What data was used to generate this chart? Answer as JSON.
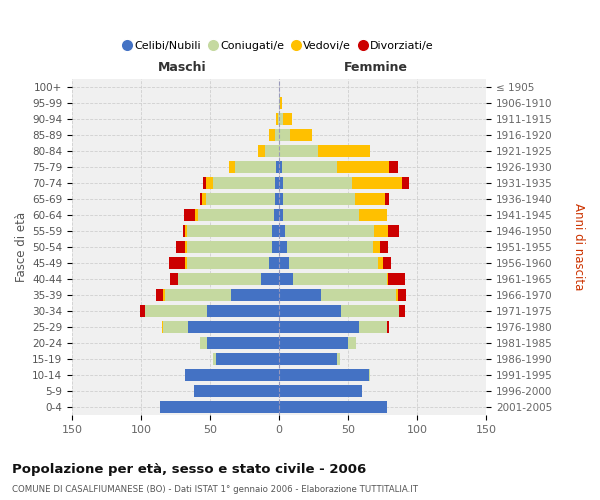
{
  "age_groups": [
    "0-4",
    "5-9",
    "10-14",
    "15-19",
    "20-24",
    "25-29",
    "30-34",
    "35-39",
    "40-44",
    "45-49",
    "50-54",
    "55-59",
    "60-64",
    "65-69",
    "70-74",
    "75-79",
    "80-84",
    "85-89",
    "90-94",
    "95-99",
    "100+"
  ],
  "birth_years": [
    "2001-2005",
    "1996-2000",
    "1991-1995",
    "1986-1990",
    "1981-1985",
    "1976-1980",
    "1971-1975",
    "1966-1970",
    "1961-1965",
    "1956-1960",
    "1951-1955",
    "1946-1950",
    "1941-1945",
    "1936-1940",
    "1931-1935",
    "1926-1930",
    "1921-1925",
    "1916-1920",
    "1911-1915",
    "1906-1910",
    "≤ 1905"
  ],
  "male_celibi": [
    86,
    62,
    68,
    46,
    52,
    66,
    52,
    35,
    13,
    7,
    5,
    5,
    4,
    3,
    3,
    2,
    0,
    0,
    0,
    0,
    0
  ],
  "male_coniugati": [
    0,
    0,
    0,
    2,
    5,
    18,
    45,
    48,
    60,
    60,
    62,
    62,
    55,
    50,
    45,
    30,
    10,
    3,
    1,
    0,
    0
  ],
  "male_vedovi": [
    0,
    0,
    0,
    0,
    0,
    1,
    0,
    1,
    0,
    1,
    1,
    1,
    2,
    3,
    5,
    4,
    5,
    4,
    1,
    0,
    0
  ],
  "male_divorziati": [
    0,
    0,
    0,
    0,
    0,
    0,
    4,
    5,
    6,
    12,
    7,
    2,
    8,
    1,
    2,
    0,
    0,
    0,
    0,
    0,
    0
  ],
  "female_nubili": [
    78,
    60,
    65,
    42,
    50,
    58,
    45,
    30,
    10,
    7,
    6,
    4,
    3,
    3,
    3,
    2,
    0,
    0,
    0,
    0,
    0
  ],
  "female_coniugate": [
    0,
    0,
    1,
    2,
    6,
    20,
    42,
    55,
    68,
    65,
    62,
    65,
    55,
    52,
    50,
    40,
    28,
    8,
    3,
    1,
    0
  ],
  "female_vedove": [
    0,
    0,
    0,
    0,
    0,
    0,
    0,
    1,
    1,
    3,
    5,
    10,
    20,
    22,
    36,
    38,
    38,
    16,
    6,
    1,
    0
  ],
  "female_divorziate": [
    0,
    0,
    0,
    0,
    0,
    2,
    4,
    6,
    12,
    6,
    6,
    8,
    0,
    3,
    5,
    6,
    0,
    0,
    0,
    0,
    0
  ],
  "color_celibi": "#4472c4",
  "color_coniugati": "#c5d9a0",
  "color_vedovi": "#ffc000",
  "color_divorziati": "#cc0000",
  "xlim": 150,
  "bg_color": "#f0f0f0",
  "grid_color": "#cccccc",
  "title": "Popolazione per età, sesso e stato civile - 2006",
  "subtitle": "COMUNE DI CASALFIUMANESE (BO) - Dati ISTAT 1° gennaio 2006 - Elaborazione TUTTITALIA.IT",
  "legend_labels": [
    "Celibi/Nubili",
    "Coniugati/e",
    "Vedovi/e",
    "Divorziati/e"
  ],
  "ylabel_left": "Fasce di età",
  "ylabel_right": "Anni di nascita",
  "xlabel_male": "Maschi",
  "xlabel_female": "Femmine"
}
